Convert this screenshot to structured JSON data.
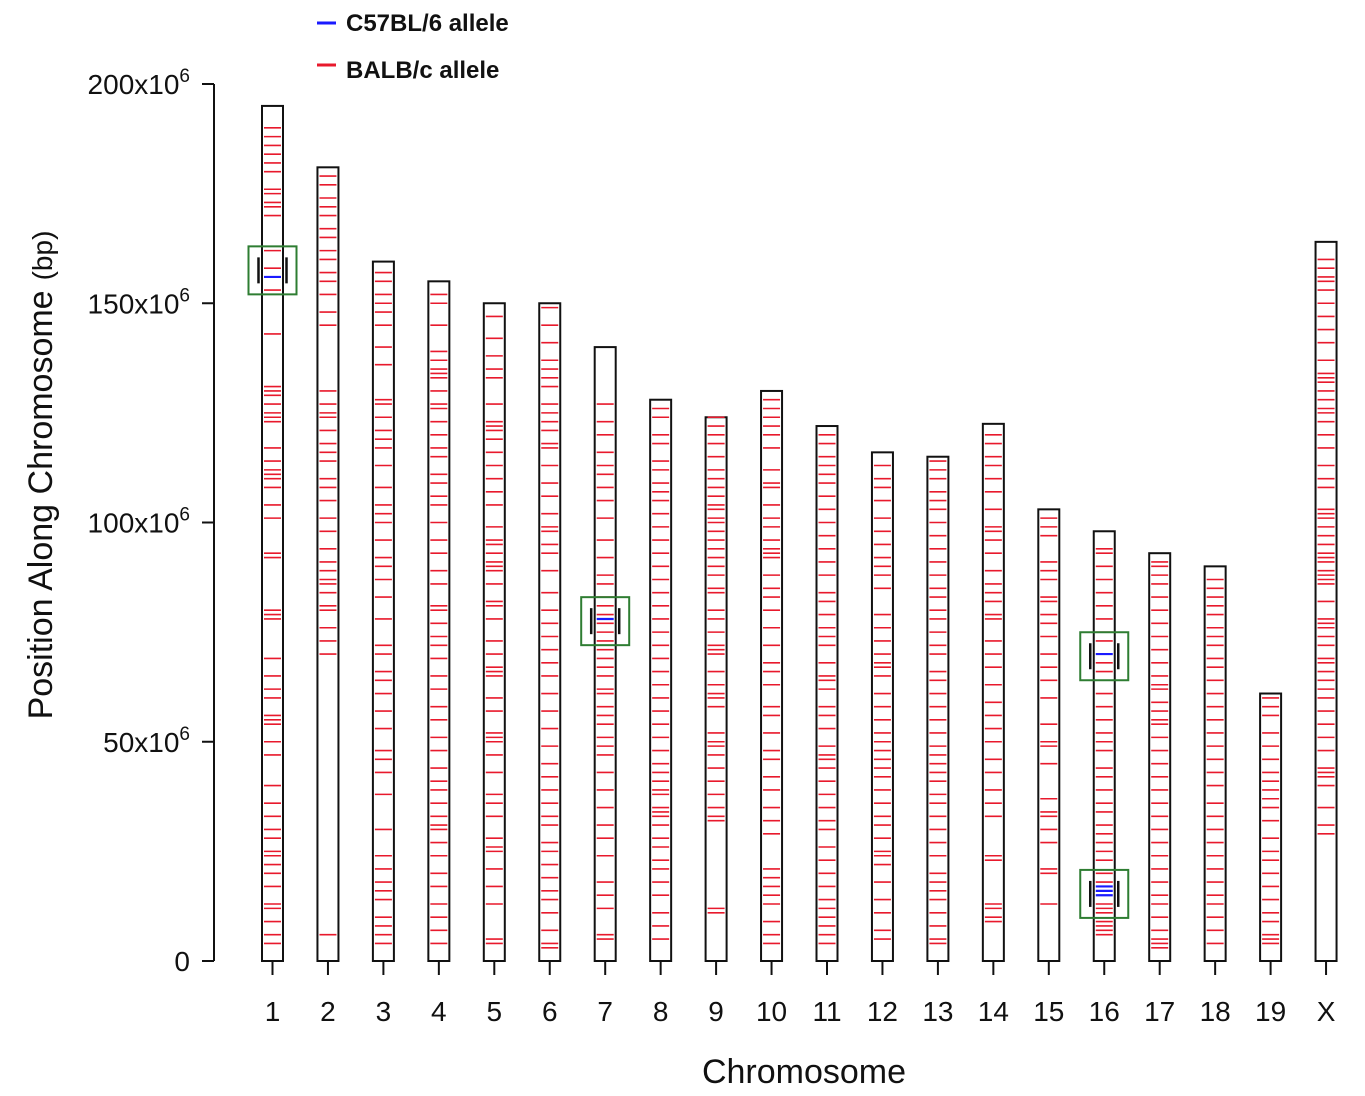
{
  "chart_data": {
    "type": "chromosome-ideogram",
    "title": "",
    "xlabel": "Chromosome",
    "ylabel": "Position Along Chromosome",
    "ylabel_unit": "(bp)",
    "ylim": [
      0,
      200000000
    ],
    "y_ticks": [
      {
        "value": 0,
        "label": "0"
      },
      {
        "value": 50000000,
        "label": "50x10"
      },
      {
        "value": 100000000,
        "label": "100x10"
      },
      {
        "value": 150000000,
        "label": "150x10"
      },
      {
        "value": 200000000,
        "label": "200x10"
      }
    ],
    "y_tick_exponent": "6",
    "legend": [
      {
        "name": "C57BL/6 allele",
        "color": "#1a1aff"
      },
      {
        "name": "BALB/c allele",
        "color": "#e8192c"
      }
    ],
    "colors": {
      "b6": "#1a1aff",
      "balbc": "#e8192c",
      "highlight": "#2e7d32",
      "outline": "#111111"
    },
    "chromosomes": [
      {
        "name": "1",
        "length": 195,
        "balbc": [
          4,
          6,
          9,
          12,
          13,
          17,
          20,
          22,
          24,
          25,
          28,
          30,
          33,
          36,
          40,
          47,
          50,
          54,
          55,
          56,
          60,
          62,
          65,
          69,
          78,
          79,
          80,
          92,
          93,
          101,
          104,
          108,
          110,
          111,
          112,
          114,
          117,
          123,
          124,
          125,
          127,
          129,
          130,
          131,
          143,
          153,
          158,
          162,
          170,
          172,
          173,
          175,
          176,
          180,
          182,
          184,
          186,
          188,
          190
        ],
        "b6": [
          156
        ],
        "highlight": {
          "center": 157.5
        }
      },
      {
        "name": "2",
        "length": 181,
        "balbc": [
          6,
          70,
          73,
          76,
          80,
          81,
          84,
          86,
          87,
          89,
          91,
          94,
          98,
          101,
          105,
          108,
          110,
          114,
          116,
          118,
          121,
          124,
          125,
          127,
          130,
          145,
          148,
          152,
          155,
          157,
          160,
          162,
          165,
          167,
          170,
          172,
          174,
          177,
          179
        ],
        "b6": [],
        "highlight": null
      },
      {
        "name": "3",
        "length": 159.5,
        "balbc": [
          4,
          6,
          8,
          10,
          14,
          16,
          18,
          21,
          24,
          30,
          38,
          43,
          46,
          48,
          53,
          57,
          61,
          64,
          66,
          70,
          72,
          78,
          83,
          87,
          90,
          92,
          96,
          100,
          102,
          104,
          108,
          113,
          117,
          119,
          121,
          124,
          127,
          128,
          136,
          140,
          145,
          148,
          150,
          152,
          155,
          157
        ],
        "b6": [],
        "highlight": null
      },
      {
        "name": "4",
        "length": 155,
        "balbc": [
          4,
          7,
          10,
          13,
          17,
          20,
          24,
          27,
          30,
          31,
          33,
          36,
          39,
          41,
          44,
          48,
          51,
          55,
          58,
          62,
          65,
          69,
          72,
          74,
          77,
          80,
          81,
          86,
          89,
          93,
          96,
          100,
          104,
          106,
          109,
          111,
          115,
          117,
          120,
          123,
          126,
          127,
          130,
          133,
          134,
          135,
          137,
          139,
          145,
          150,
          152
        ],
        "b6": [],
        "highlight": null
      },
      {
        "name": "5",
        "length": 150,
        "balbc": [
          4,
          5,
          13,
          17,
          21,
          25,
          26,
          28,
          33,
          36,
          38,
          43,
          47,
          50,
          51,
          52,
          57,
          60,
          65,
          66,
          67,
          70,
          73,
          78,
          81,
          82,
          86,
          89,
          90,
          91,
          93,
          95,
          96,
          99,
          104,
          107,
          110,
          113,
          116,
          119,
          121,
          122,
          123,
          127,
          133,
          135,
          138,
          142,
          147
        ],
        "b6": [],
        "highlight": null
      },
      {
        "name": "6",
        "length": 150,
        "balbc": [
          3,
          4,
          7,
          11,
          14,
          16,
          19,
          22,
          25,
          27,
          31,
          33,
          36,
          39,
          42,
          45,
          49,
          53,
          57,
          61,
          65,
          68,
          71,
          74,
          77,
          80,
          84,
          89,
          93,
          95,
          98,
          99,
          102,
          106,
          109,
          113,
          117,
          118,
          121,
          123,
          125,
          127,
          131,
          133,
          135,
          137,
          141,
          145,
          149
        ],
        "b6": [],
        "highlight": null
      },
      {
        "name": "7",
        "length": 140,
        "balbc": [
          5,
          6,
          12,
          15,
          18,
          24,
          28,
          31,
          35,
          39,
          43,
          47,
          49,
          51,
          54,
          56,
          58,
          61,
          62,
          65,
          67,
          69,
          71,
          73,
          75,
          77,
          79,
          81,
          83,
          86,
          88,
          92,
          96,
          101,
          105,
          108,
          111,
          113,
          116,
          120,
          123,
          127
        ],
        "b6": [
          78
        ],
        "highlight": {
          "center": 77.5
        }
      },
      {
        "name": "8",
        "length": 128,
        "balbc": [
          5,
          8,
          11,
          15,
          18,
          21,
          23,
          26,
          28,
          31,
          33,
          34,
          35,
          38,
          39,
          41,
          43,
          45,
          48,
          51,
          54,
          57,
          60,
          63,
          66,
          69,
          72,
          75,
          78,
          81,
          84,
          87,
          90,
          93,
          96,
          99,
          102,
          105,
          107,
          109,
          112,
          114,
          118,
          120,
          124,
          126
        ],
        "b6": [],
        "highlight": null
      },
      {
        "name": "9",
        "length": 124,
        "balbc": [
          11,
          12,
          32,
          33,
          35,
          38,
          41,
          44,
          47,
          49,
          50,
          52,
          58,
          60,
          61,
          63,
          66,
          70,
          71,
          72,
          75,
          78,
          80,
          84,
          85,
          88,
          90,
          92,
          94,
          96,
          98,
          100,
          101,
          103,
          104,
          106,
          108,
          110,
          112,
          115,
          118,
          120,
          122,
          124
        ],
        "b6": [],
        "highlight": null
      },
      {
        "name": "10",
        "length": 130,
        "balbc": [
          4,
          6,
          9,
          13,
          15,
          17,
          19,
          21,
          29,
          32,
          35,
          39,
          42,
          46,
          48,
          52,
          56,
          58,
          63,
          66,
          68,
          72,
          76,
          80,
          83,
          85,
          88,
          92,
          93,
          94,
          96,
          99,
          101,
          104,
          108,
          109,
          112,
          117,
          120,
          122,
          124,
          126,
          128
        ],
        "b6": [],
        "highlight": null
      },
      {
        "name": "11",
        "length": 122,
        "balbc": [
          4,
          6,
          8,
          10,
          12,
          14,
          17,
          20,
          23,
          26,
          30,
          32,
          35,
          38,
          41,
          44,
          46,
          47,
          49,
          53,
          56,
          58,
          62,
          64,
          65,
          68,
          72,
          74,
          76,
          79,
          82,
          84,
          88,
          91,
          94,
          97,
          100,
          103,
          106,
          109,
          111,
          113,
          115,
          118,
          120
        ],
        "b6": [],
        "highlight": null
      },
      {
        "name": "12",
        "length": 116,
        "balbc": [
          5,
          7,
          11,
          14,
          18,
          22,
          24,
          25,
          28,
          31,
          33,
          36,
          39,
          42,
          44,
          46,
          48,
          50,
          52,
          55,
          58,
          61,
          65,
          67,
          68,
          70,
          73,
          76,
          79,
          85,
          88,
          90,
          92,
          95,
          98,
          101,
          105,
          108,
          110,
          113
        ],
        "b6": [],
        "highlight": null
      },
      {
        "name": "13",
        "length": 115,
        "balbc": [
          4,
          5,
          8,
          11,
          14,
          16,
          18,
          20,
          24,
          27,
          30,
          33,
          36,
          38,
          41,
          43,
          45,
          47,
          49,
          52,
          55,
          58,
          61,
          64,
          66,
          70,
          72,
          75,
          78,
          80,
          83,
          85,
          88,
          91,
          94,
          97,
          100,
          103,
          105,
          107,
          110,
          112,
          114
        ],
        "b6": [],
        "highlight": null
      },
      {
        "name": "14",
        "length": 122.5,
        "balbc": [
          9,
          10,
          12,
          13,
          23,
          24,
          33,
          36,
          39,
          43,
          46,
          50,
          53,
          56,
          59,
          63,
          67,
          70,
          73,
          78,
          79,
          82,
          84,
          86,
          89,
          93,
          96,
          98,
          99,
          103,
          107,
          110,
          113,
          115,
          118,
          120
        ],
        "b6": [],
        "highlight": null
      },
      {
        "name": "15",
        "length": 103,
        "balbc": [
          13,
          20,
          21,
          27,
          30,
          33,
          34,
          37,
          45,
          49,
          50,
          54,
          60,
          64,
          67,
          70,
          74,
          77,
          79,
          82,
          83,
          87,
          89,
          91,
          97,
          99,
          101
        ],
        "b6": [],
        "highlight": null
      },
      {
        "name": "16",
        "length": 98,
        "balbc": [
          6,
          7,
          8,
          9,
          11,
          12,
          13,
          18,
          20,
          23,
          25,
          27,
          29,
          31,
          34,
          36,
          39,
          42,
          44,
          48,
          50,
          52,
          55,
          58,
          61,
          66,
          68,
          73,
          75,
          78,
          81,
          84,
          87,
          90,
          93,
          94
        ],
        "b6": [
          15,
          16,
          17,
          70
        ],
        "highlight": [
          {
            "center": 15.3
          },
          {
            "center": 69.5
          }
        ]
      },
      {
        "name": "17",
        "length": 93,
        "balbc": [
          3,
          4,
          5,
          7,
          10,
          13,
          15,
          18,
          21,
          24,
          27,
          30,
          33,
          36,
          39,
          42,
          45,
          48,
          51,
          54,
          55,
          57,
          59,
          62,
          63,
          65,
          68,
          71,
          74,
          77,
          80,
          83,
          86,
          88,
          90,
          91
        ],
        "b6": [],
        "highlight": null
      },
      {
        "name": "18",
        "length": 90,
        "balbc": [
          4,
          7,
          10,
          13,
          15,
          18,
          21,
          24,
          27,
          30,
          33,
          36,
          40,
          43,
          46,
          49,
          52,
          55,
          58,
          61,
          64,
          67,
          69,
          72,
          74,
          76,
          79,
          81,
          83,
          85,
          87
        ],
        "b6": [],
        "highlight": null
      },
      {
        "name": "19",
        "length": 61,
        "balbc": [
          4,
          5,
          6,
          9,
          11,
          14,
          17,
          20,
          23,
          25,
          28,
          32,
          35,
          37,
          39,
          41,
          43,
          46,
          49,
          52,
          56,
          58,
          60
        ],
        "b6": [],
        "highlight": null
      },
      {
        "name": "X",
        "length": 164,
        "balbc": [
          29,
          31,
          35,
          40,
          42,
          43,
          44,
          48,
          51,
          54,
          57,
          60,
          62,
          64,
          66,
          68,
          69,
          72,
          74,
          76,
          77,
          78,
          82,
          86,
          87,
          88,
          89,
          91,
          92,
          93,
          95,
          97,
          99,
          101,
          102,
          103,
          108,
          110,
          113,
          117,
          120,
          123,
          125,
          126,
          128,
          130,
          132,
          133,
          134,
          137,
          141,
          144,
          147,
          150,
          153,
          155,
          156,
          158,
          160
        ],
        "b6": [],
        "highlight": null
      }
    ]
  }
}
